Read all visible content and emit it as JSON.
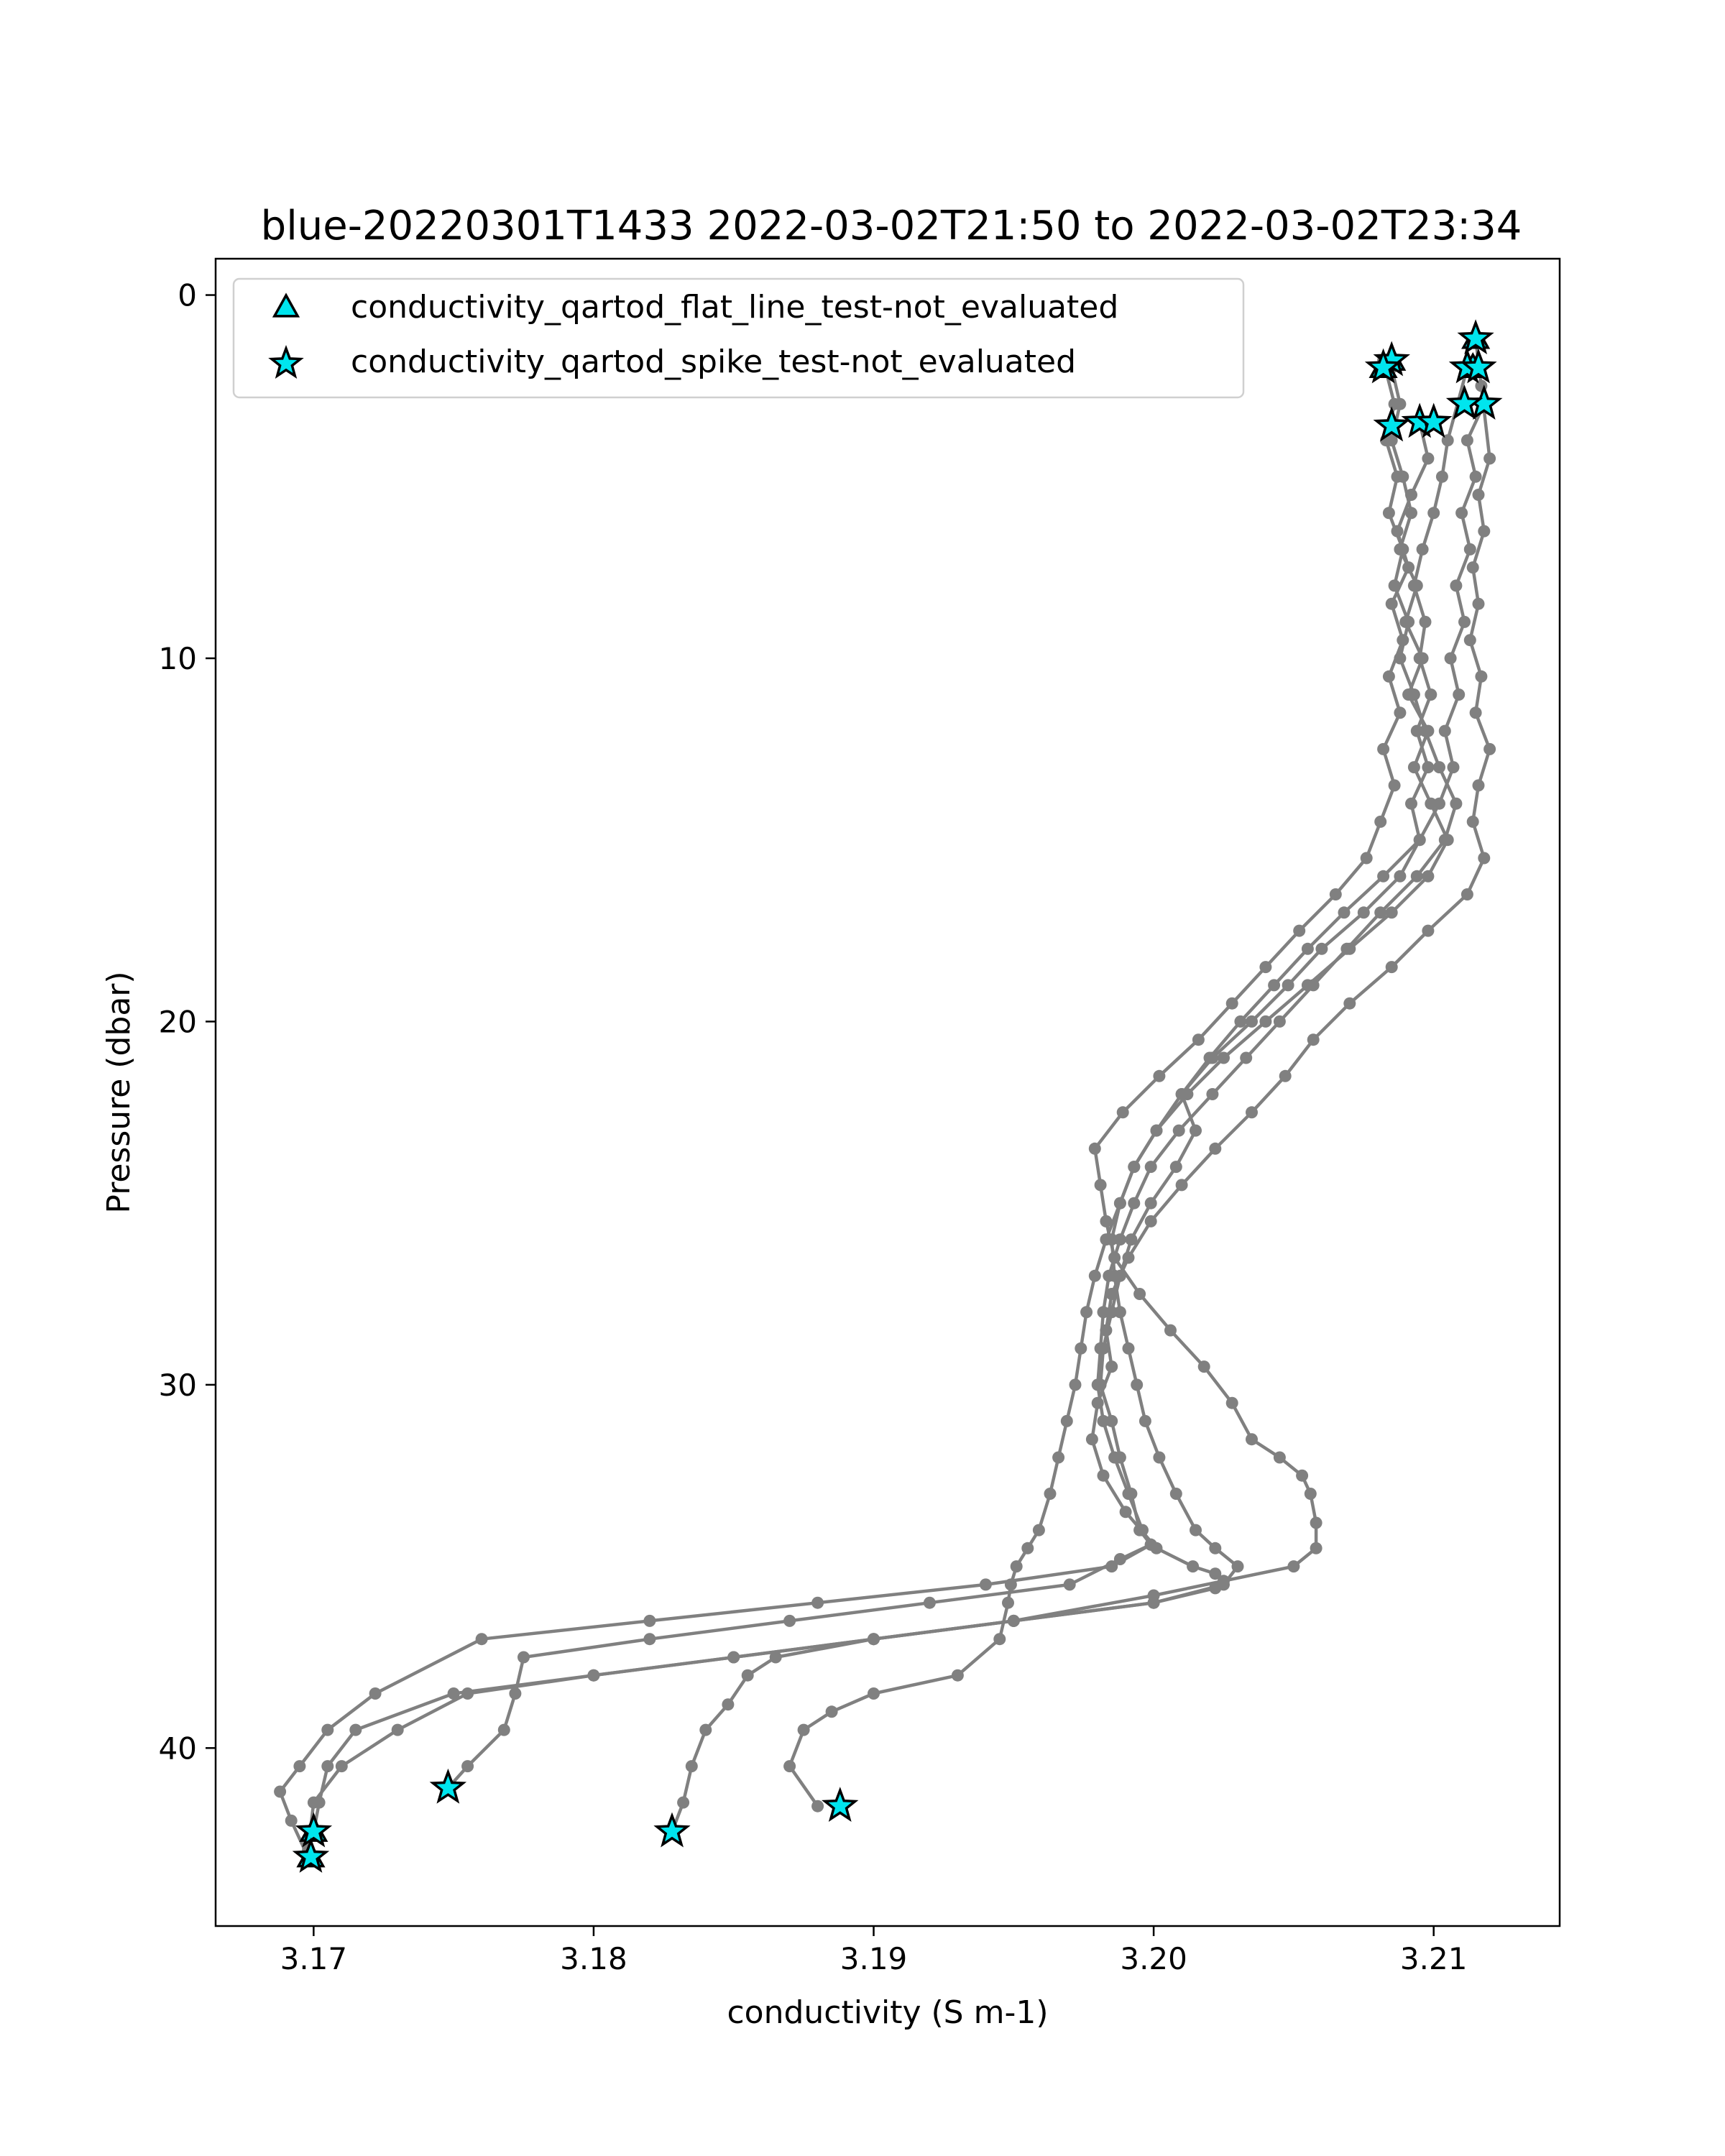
{
  "chart_data": {
    "type": "line",
    "title": "blue-20220301T1433 2022-03-02T21:50 to 2022-03-02T23:34",
    "xlabel": "conductivity (S m-1)",
    "ylabel": "Pressure (dbar)",
    "xlim": [
      3.1665,
      3.2145
    ],
    "ylim": [
      44.9,
      -1.0
    ],
    "y_inverted": true,
    "xticks": [
      3.17,
      3.18,
      3.19,
      3.2,
      3.21
    ],
    "xtick_labels": [
      "3.17",
      "3.18",
      "3.19",
      "3.20",
      "3.21"
    ],
    "yticks": [
      0,
      10,
      20,
      30,
      40
    ],
    "ytick_labels": [
      "0",
      "10",
      "20",
      "30",
      "40"
    ],
    "grid": false,
    "legend_position": "upper-left",
    "colors": {
      "line": "#808080",
      "qc_marker_fill": "#00e5ee",
      "qc_marker_edge": "#000000"
    },
    "legend": [
      {
        "label": "conductivity_qartod_flat_line_test-not_evaluated",
        "marker": "triangle"
      },
      {
        "label": "conductivity_qartod_spike_test-not_evaluated",
        "marker": "star"
      }
    ],
    "series": [
      {
        "x": [
          3.2115,
          3.2117,
          3.212,
          3.2116,
          3.2118,
          3.2114,
          3.2116,
          3.2113,
          3.2117,
          3.2115,
          3.212,
          3.2116,
          3.2114,
          3.2118,
          3.2112,
          3.2098,
          3.2085,
          3.207,
          3.2057,
          3.2047,
          3.2035,
          3.2022,
          3.201,
          3.1999,
          3.1991,
          3.1985,
          3.1983,
          3.1985,
          3.198,
          3.1978,
          3.1982,
          3.199,
          3.2001,
          3.2014,
          3.2022,
          3.2025,
          3.2022,
          3.2,
          3.195,
          3.19,
          3.185,
          3.18,
          3.175,
          3.1715,
          3.1705,
          3.1702,
          3.17
        ],
        "y": [
          1.2,
          2.5,
          4.5,
          5.5,
          6.5,
          7.5,
          8.5,
          9.5,
          10.5,
          11.5,
          12.5,
          13.5,
          14.5,
          15.5,
          16.5,
          17.5,
          18.5,
          19.5,
          20.5,
          21.5,
          22.5,
          23.5,
          24.5,
          25.5,
          26.5,
          27.5,
          28.5,
          29.5,
          30.5,
          31.5,
          32.5,
          33.5,
          34.5,
          35,
          35.2,
          35.4,
          35.6,
          36,
          36.5,
          37,
          37.5,
          38,
          38.5,
          39.5,
          40.5,
          41.5,
          42.3
        ]
      },
      {
        "x": [
          3.2112,
          3.2105,
          3.2103,
          3.21,
          3.2096,
          3.2093,
          3.2097,
          3.2095,
          3.2099,
          3.2094,
          3.2098,
          3.2092,
          3.2095,
          3.2088,
          3.2075,
          3.206,
          3.2048,
          3.2035,
          3.2021,
          3.201,
          3.2015,
          3.2008,
          3.1999,
          3.1992,
          3.1988,
          3.1985,
          3.1982,
          3.1981,
          3.1985,
          3.1988,
          3.1992,
          3.1995,
          3.1999,
          3.1988,
          3.197,
          3.192,
          3.187,
          3.182,
          3.1775,
          3.1772,
          3.1768,
          3.1755,
          3.1748
        ],
        "y": [
          2.0,
          4.0,
          5.0,
          6.0,
          7.0,
          8.0,
          9.0,
          10.0,
          11.0,
          12.0,
          13.0,
          14.0,
          15.0,
          16.0,
          17.0,
          18.0,
          19.0,
          20.0,
          21.0,
          22.0,
          23.0,
          24.0,
          25.0,
          26.0,
          27.0,
          28.0,
          29.0,
          30.0,
          31.0,
          32.0,
          33.0,
          34.0,
          34.4,
          34.8,
          35.5,
          36.0,
          36.5,
          37.0,
          37.5,
          38.5,
          39.5,
          40.5,
          41.1
        ]
      },
      {
        "x": [
          3.2095,
          3.2098,
          3.2092,
          3.2087,
          3.2091,
          3.2085,
          3.2089,
          3.2084,
          3.2088,
          3.2082,
          3.2086,
          3.2081,
          3.2076,
          3.2065,
          3.2052,
          3.204,
          3.2028,
          3.2016,
          3.2002,
          3.1989,
          3.1979,
          3.1981,
          3.1983,
          3.1986,
          3.1995,
          3.2006,
          3.2018,
          3.2028,
          3.2035,
          3.2045,
          3.2053,
          3.2056,
          3.2058,
          3.2058,
          3.205,
          3.2,
          3.195,
          3.19,
          3.1865,
          3.1855,
          3.1848,
          3.184,
          3.1835,
          3.1832,
          3.1828
        ],
        "y": [
          3.5,
          4.5,
          5.5,
          6.5,
          7.5,
          8.5,
          9.5,
          10.5,
          11.5,
          12.5,
          13.5,
          14.5,
          15.5,
          16.5,
          17.5,
          18.5,
          19.5,
          20.5,
          21.5,
          22.5,
          23.5,
          24.5,
          25.5,
          26.5,
          27.5,
          28.5,
          29.5,
          30.5,
          31.5,
          32.0,
          32.5,
          33.0,
          33.8,
          34.5,
          35.0,
          35.8,
          36.5,
          37.0,
          37.5,
          38.0,
          38.8,
          39.5,
          40.5,
          41.5,
          42.3
        ]
      },
      {
        "x": [
          3.2085,
          3.2088,
          3.2085,
          3.2089,
          3.2092,
          3.2088,
          3.2094,
          3.209,
          3.2096,
          3.2091,
          3.2098,
          3.2093,
          3.2099,
          3.2105,
          3.2098,
          3.2085,
          3.207,
          3.2055,
          3.204,
          3.2025,
          3.2012,
          3.2001,
          3.1993,
          3.1988,
          3.1983,
          3.1979,
          3.1976,
          3.1974,
          3.1972,
          3.1969,
          3.1966,
          3.1963,
          3.1959,
          3.1955,
          3.1951,
          3.1949,
          3.1948,
          3.1945,
          3.193,
          3.19,
          3.1885,
          3.1875,
          3.187,
          3.188
        ],
        "y": [
          2.0,
          3.0,
          4.0,
          5.0,
          6.0,
          7.0,
          8.0,
          9.0,
          10.0,
          11.0,
          12.0,
          13.0,
          14.0,
          15.0,
          16.0,
          17.0,
          18.0,
          19.0,
          20.0,
          21.0,
          22.0,
          23.0,
          24.0,
          25.0,
          26.0,
          27.0,
          28.0,
          29.0,
          30.0,
          31.0,
          32.0,
          33.0,
          34.0,
          34.5,
          35.0,
          35.5,
          36.0,
          37.0,
          38.0,
          38.5,
          39.0,
          39.5,
          40.5,
          41.6
        ]
      },
      {
        "x": [
          3.2118,
          3.2112,
          3.2115,
          3.211,
          3.2113,
          3.2108,
          3.2111,
          3.2106,
          3.2109,
          3.2104,
          3.2107,
          3.2102,
          3.2095,
          3.2082,
          3.2068,
          3.2055,
          3.2043,
          3.2031,
          3.202,
          3.201,
          3.2001,
          3.1993,
          3.1988,
          3.1985,
          3.1986,
          3.1988,
          3.1991,
          3.1994,
          3.1997,
          3.2002,
          3.2008,
          3.2015,
          3.2022,
          3.203,
          3.2025,
          3.2,
          3.195,
          3.19,
          3.185,
          3.18,
          3.1755,
          3.173,
          3.171,
          3.17,
          3.1698
        ],
        "y": [
          3.0,
          4.0,
          5.0,
          6.0,
          7.0,
          8.0,
          9.0,
          10.0,
          11.0,
          12.0,
          13.0,
          14.0,
          15.0,
          16.0,
          17.0,
          18.0,
          19.0,
          20.0,
          21.0,
          22.0,
          23.0,
          24.0,
          25.0,
          26.0,
          27.0,
          28.0,
          29.0,
          30.0,
          31.0,
          32.0,
          33.0,
          34.0,
          34.5,
          35.0,
          35.5,
          36.0,
          36.5,
          37.0,
          37.5,
          38.0,
          38.5,
          39.5,
          40.5,
          41.5,
          42.8
        ]
      },
      {
        "x": [
          3.2082,
          3.2086,
          3.2083,
          3.2087,
          3.2084,
          3.2089,
          3.2086,
          3.2091,
          3.2088,
          3.2093,
          3.2097,
          3.2102,
          3.2108,
          3.2104,
          3.2094,
          3.2081,
          3.2069,
          3.2057,
          3.2045,
          3.2033,
          3.2021,
          3.2009,
          3.1999,
          3.1993,
          3.1988,
          3.1984,
          3.1982,
          3.1981,
          3.198,
          3.1982,
          3.1986,
          3.1991,
          3.1996,
          3.1999,
          3.1985,
          3.194,
          3.188,
          3.182,
          3.176,
          3.1722,
          3.1705,
          3.1695,
          3.1688,
          3.1692,
          3.1698
        ],
        "y": [
          1.8,
          3.0,
          4.0,
          5.0,
          6.0,
          7.0,
          8.0,
          9.0,
          10.0,
          11.0,
          12.0,
          13.0,
          14.0,
          15.0,
          16.0,
          17.0,
          18.0,
          19.0,
          20.0,
          21.0,
          22.0,
          23.0,
          24.0,
          25.0,
          26.0,
          27.0,
          28.0,
          29.0,
          30.0,
          31.0,
          32.0,
          33.0,
          34.0,
          34.4,
          35.0,
          35.5,
          36.0,
          36.5,
          37.0,
          38.5,
          39.5,
          40.5,
          41.2,
          42.0,
          43.0
        ]
      }
    ],
    "qc_points": [
      {
        "test": "flat_line",
        "marker": "triangle",
        "points": [
          [
            3.2082,
            2.0
          ],
          [
            3.2085,
            1.8
          ],
          [
            3.2114,
            2.0
          ],
          [
            3.2115,
            1.2
          ],
          [
            3.1699,
            43.0
          ],
          [
            3.17,
            42.3
          ]
        ]
      },
      {
        "test": "spike",
        "marker": "star",
        "points": [
          [
            3.2115,
            1.2
          ],
          [
            3.2085,
            1.8
          ],
          [
            3.2082,
            2.0
          ],
          [
            3.2112,
            2.0
          ],
          [
            3.2116,
            2.0
          ],
          [
            3.2118,
            3.0
          ],
          [
            3.2111,
            3.0
          ],
          [
            3.2095,
            3.5
          ],
          [
            3.2085,
            3.6
          ],
          [
            3.21,
            3.5
          ],
          [
            3.1748,
            41.1
          ],
          [
            3.1828,
            42.3
          ],
          [
            3.1888,
            41.6
          ],
          [
            3.17,
            42.3
          ],
          [
            3.1699,
            43.0
          ]
        ]
      }
    ]
  }
}
